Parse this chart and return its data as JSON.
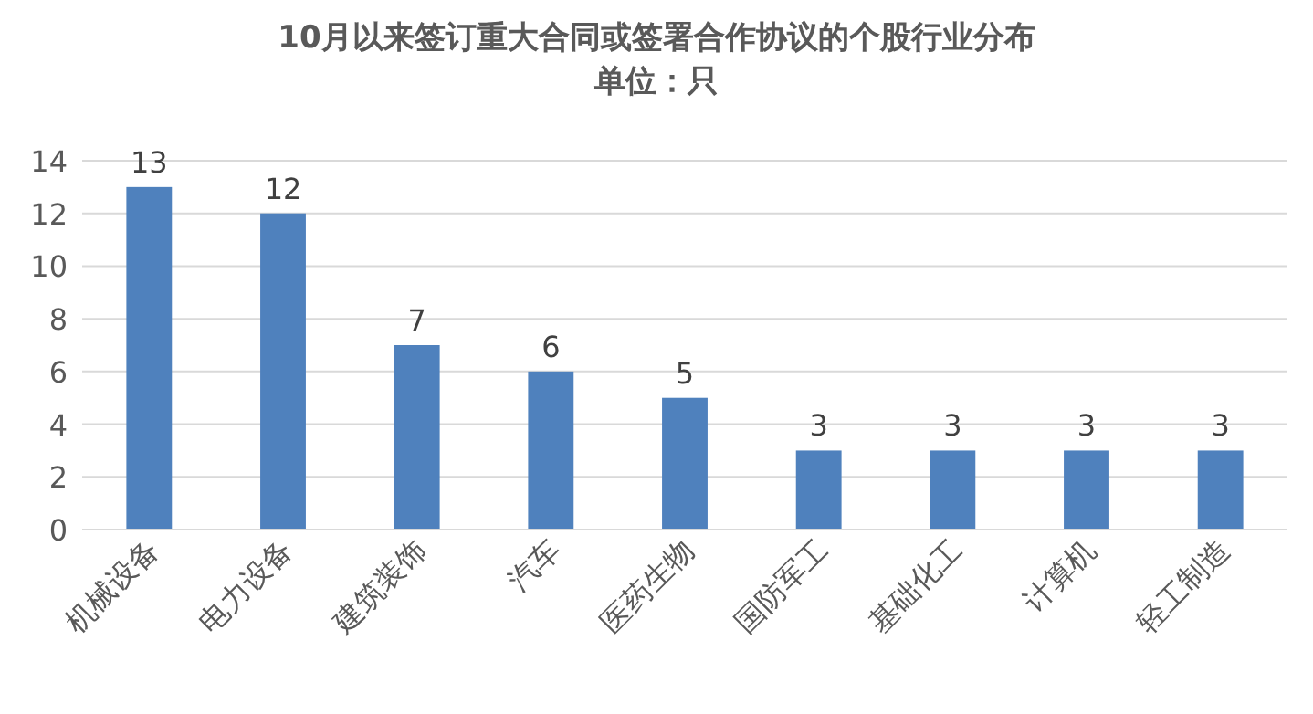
{
  "chart_data": {
    "type": "bar",
    "title": "10月以来签订重大合同或签署合作协议的个股行业分布",
    "subtitle": "单位：只",
    "categories": [
      "机械设备",
      "电力设备",
      "建筑装饰",
      "汽车",
      "医药生物",
      "国防军工",
      "基础化工",
      "计算机",
      "轻工制造"
    ],
    "values": [
      13,
      12,
      7,
      6,
      5,
      3,
      3,
      3,
      3
    ],
    "color": "#4f81bd",
    "ylim": [
      0,
      14
    ],
    "yticks": [
      0,
      2,
      4,
      6,
      8,
      10,
      12,
      14
    ],
    "grid": "y",
    "data_labels": true
  }
}
